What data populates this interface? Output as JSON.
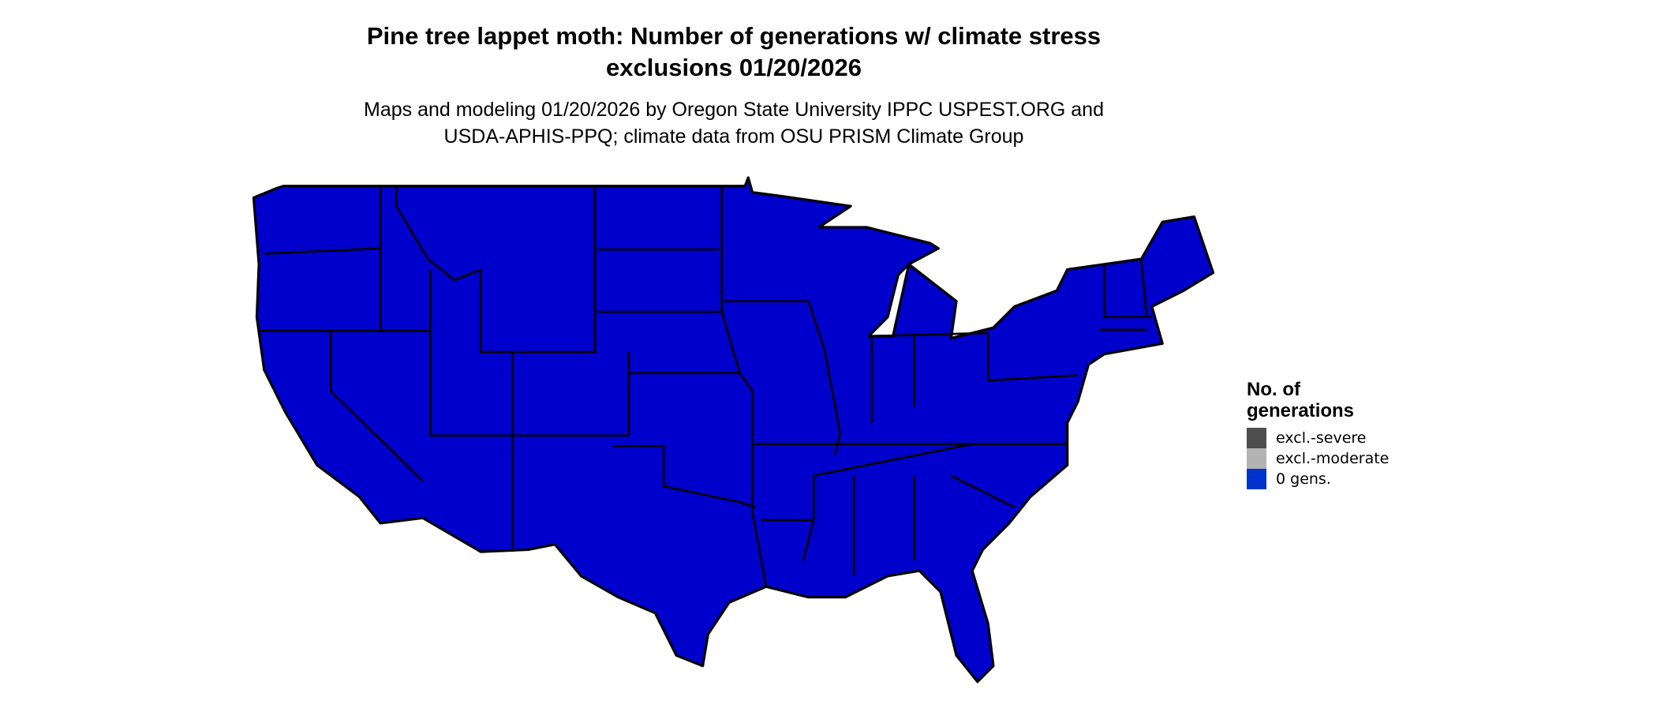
{
  "title": {
    "line1": "Pine tree lappet moth: Number of generations w/ climate stress",
    "line2": "exclusions 01/20/2026"
  },
  "subtitle": {
    "line1": "Maps and modeling 01/20/2026 by Oregon State University IPPC USPEST.ORG and",
    "line2": "USDA-APHIS-PPQ; climate data from OSU PRISM Climate Group"
  },
  "map": {
    "region": "contiguous United States",
    "fill_color": "#0000CC",
    "border_color": "#000000",
    "displayed_category": "0 gens."
  },
  "legend": {
    "title_line1": "No. of",
    "title_line2": "generations",
    "items": [
      {
        "label": "excl.-severe",
        "color": "#4D4D4D"
      },
      {
        "label": "excl.-moderate",
        "color": "#B3B3B3"
      },
      {
        "label": "0 gens.",
        "color": "#0033CC"
      }
    ]
  }
}
